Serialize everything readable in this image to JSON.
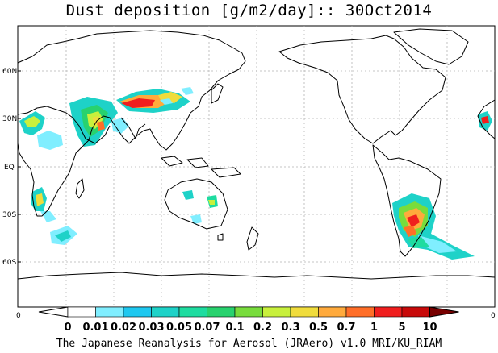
{
  "title": "Dust deposition [g/m2/day]:: 30Oct2014",
  "lat_labels": [
    "60N",
    "30N",
    "EQ",
    "30S",
    "60S"
  ],
  "colorbar": {
    "edge_left": "0",
    "edge_right": "0",
    "levels": [
      "0",
      "0.01",
      "0.02",
      "0.03",
      "0.05",
      "0.07",
      "0.1",
      "0.2",
      "0.3",
      "0.5",
      "0.7",
      "1",
      "5",
      "10"
    ],
    "colors": [
      "#ffffff",
      "#80eeff",
      "#1ec8f0",
      "#1ed2c8",
      "#1edca0",
      "#28d26e",
      "#78dc3c",
      "#c8f03c",
      "#f0dc3c",
      "#ffaa3c",
      "#ff6e28",
      "#f01e1e",
      "#c80a0a",
      "#960000",
      "#780000"
    ]
  },
  "footer": "The Japanese Reanalysis for Aerosol (JRAero) v1.0 MRI/KU_RIAM",
  "colors": {
    "coast": "#000000",
    "grid": "#b4b4b4"
  }
}
